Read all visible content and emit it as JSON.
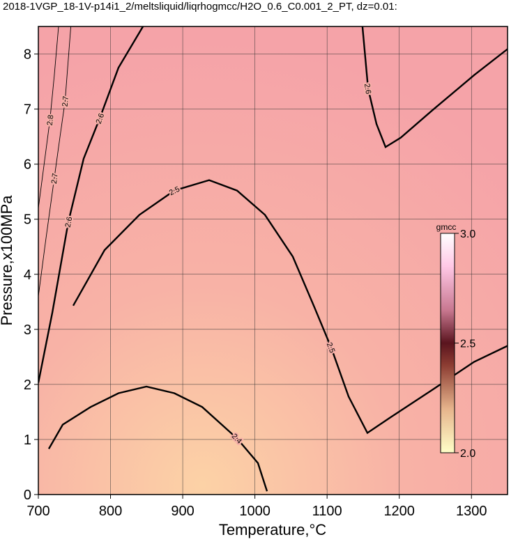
{
  "chart_data": {
    "type": "contour",
    "title": "2018-1VGP_18-1V-p14i1_2/meltsliquid/liqrhogmcc/H2O_0.6_C0.001_2_PT, dz=0.01:",
    "x_label": "Temperature,°C",
    "y_label": "Pressure,x100MPa",
    "xlim": [
      700,
      1350
    ],
    "ylim": [
      0,
      8.5
    ],
    "xticks": [
      700,
      800,
      900,
      1000,
      1100,
      1200,
      1300
    ],
    "yticks": [
      0,
      1,
      2,
      3,
      4,
      5,
      6,
      7,
      8
    ],
    "grid": true,
    "colorbar": {
      "label": "gmcc",
      "lim": [
        2,
        3
      ],
      "ticks": [
        {
          "value": 2,
          "label": "2.0"
        },
        {
          "value": 2.5,
          "label": "2.5"
        },
        {
          "value": 3,
          "label": "3.0"
        }
      ]
    },
    "contours": [
      {
        "level": 2.6,
        "x": [
          700,
          719.3,
          741.5,
          762.8,
          785,
          811,
          845
        ],
        "y": [
          2.03,
          3.3,
          4.95,
          6.1,
          6.83,
          7.75,
          8.5
        ]
      },
      {
        "level": 2.6,
        "x": [
          1149,
          1156.8,
          1168.4,
          1181,
          1202,
          1246,
          1304,
          1350
        ],
        "y": [
          8.5,
          7.37,
          6.73,
          6.31,
          6.48,
          6.98,
          7.62,
          8.09
        ]
      },
      {
        "level": 2.5,
        "x": [
          748.3,
          791.8,
          840,
          888.3,
          936.6,
          975.3,
          1013.9,
          1052.5,
          1081.5,
          1105.6,
          1129.8,
          1155.9,
          1187.7,
          1245.7,
          1303.6,
          1350
        ],
        "y": [
          3.43,
          4.44,
          5.08,
          5.52,
          5.71,
          5.52,
          5.08,
          4.32,
          3.43,
          2.67,
          1.78,
          1.12,
          1.4,
          1.9,
          2.41,
          2.7
        ]
      },
      {
        "level": 2.4,
        "x": [
          714.5,
          733.8,
          772.4,
          811.1,
          849.7,
          888.3,
          927,
          975.3,
          1004.2,
          1016.8
        ],
        "y": [
          0.83,
          1.27,
          1.59,
          1.84,
          1.96,
          1.84,
          1.59,
          1.02,
          0.57,
          0.06
        ]
      },
      {
        "level": 2.7,
        "x": [
          700,
          710,
          722,
          730,
          737,
          745
        ],
        "y": [
          3.6,
          4.6,
          5.74,
          6.5,
          7.14,
          8.5
        ]
      },
      {
        "level": 2.8,
        "x": [
          700,
          708,
          716,
          722,
          728
        ],
        "y": [
          5.2,
          6.0,
          6.8,
          7.6,
          8.5
        ]
      }
    ]
  }
}
